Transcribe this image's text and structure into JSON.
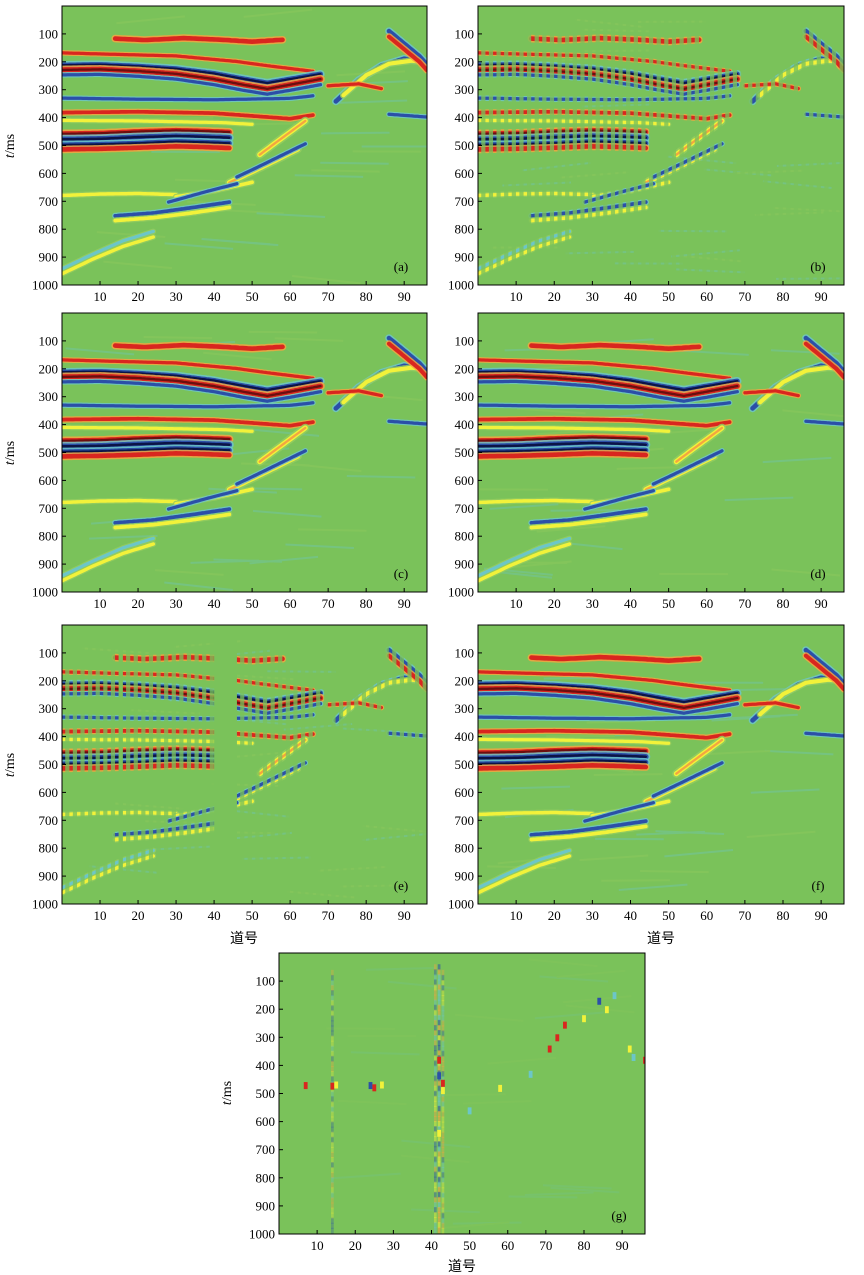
{
  "figure": {
    "colormap": {
      "background": "#7ac25a",
      "light_green": "#95cc5f",
      "yellow": "#f2f23a",
      "orange": "#f4a540",
      "red": "#d9261f",
      "dark_red": "#6b0f0f",
      "cyan": "#6cc6c8",
      "blue": "#2b4fa8",
      "dark_blue": "#0b1446"
    },
    "frame_color": "#000000"
  },
  "chart_data": [
    {
      "type": "heatmap",
      "label": "(a)",
      "variant": "original",
      "xlabel": "",
      "ylabel": "t/ms",
      "ylabel_italic": "t",
      "ylabel_unit": "/ms",
      "xlim": [
        0,
        96
      ],
      "ylim": [
        1000,
        0
      ],
      "y_inverted": true,
      "x_ticks": [
        "10",
        "20",
        "30",
        "40",
        "50",
        "60",
        "70",
        "80",
        "90"
      ],
      "y_ticks": [
        "100",
        "200",
        "300",
        "400",
        "500",
        "600",
        "700",
        "800",
        "900",
        "1000"
      ],
      "grid": false,
      "legend": "none",
      "events": [
        {
          "shape": "piecewise",
          "x": [
            14,
            22,
            32,
            42,
            50,
            58
          ],
          "t": [
            117,
            122,
            115,
            121,
            128,
            121
          ],
          "polarity": "red",
          "strength": 0.8
        },
        {
          "shape": "piecewise",
          "x": [
            0,
            16,
            30,
            46,
            54,
            60,
            66
          ],
          "t": [
            168,
            174,
            179,
            199,
            214,
            224,
            234
          ],
          "polarity": "red",
          "strength": 0.5
        },
        {
          "shape": "piecewise",
          "x": [
            0,
            10,
            20,
            30,
            40,
            48,
            54,
            60,
            68
          ],
          "t": [
            212,
            210,
            216,
            225,
            242,
            262,
            276,
            262,
            244
          ],
          "polarity": "blue",
          "strength": 0.9
        },
        {
          "shape": "piecewise",
          "x": [
            0,
            10,
            20,
            30,
            40,
            48,
            54,
            60,
            68
          ],
          "t": [
            229,
            227,
            233,
            243,
            262,
            283,
            297,
            282,
            262
          ],
          "polarity": "red",
          "strength": 0.95
        },
        {
          "shape": "piecewise",
          "x": [
            0,
            10,
            20,
            30,
            40,
            48,
            54,
            60,
            68
          ],
          "t": [
            247,
            245,
            252,
            262,
            282,
            303,
            316,
            302,
            282
          ],
          "polarity": "blue",
          "strength": 0.5
        },
        {
          "shape": "piecewise",
          "x": [
            0,
            20,
            40,
            60,
            66
          ],
          "t": [
            330,
            334,
            336,
            331,
            322
          ],
          "polarity": "blue",
          "strength": 0.5
        },
        {
          "shape": "piecewise",
          "x": [
            0,
            20,
            40,
            52,
            60,
            66
          ],
          "t": [
            382,
            379,
            384,
            396,
            404,
            391
          ],
          "polarity": "red",
          "strength": 0.6
        },
        {
          "shape": "piecewise",
          "x": [
            0,
            20,
            42,
            50
          ],
          "t": [
            410,
            412,
            418,
            424
          ],
          "polarity": "yellow",
          "strength": 0.5
        },
        {
          "shape": "piecewise",
          "x": [
            0,
            10,
            20,
            30,
            36,
            44
          ],
          "t": [
            458,
            456,
            450,
            446,
            448,
            452
          ],
          "polarity": "red",
          "strength": 0.9
        },
        {
          "shape": "piecewise",
          "x": [
            0,
            10,
            20,
            30,
            36,
            44
          ],
          "t": [
            478,
            476,
            470,
            466,
            468,
            472
          ],
          "polarity": "blue",
          "strength": 1.0
        },
        {
          "shape": "piecewise",
          "x": [
            0,
            10,
            20,
            30,
            36,
            44
          ],
          "t": [
            498,
            496,
            492,
            486,
            488,
            492
          ],
          "polarity": "blue",
          "strength": 0.9
        },
        {
          "shape": "piecewise",
          "x": [
            0,
            10,
            20,
            30,
            36,
            44
          ],
          "t": [
            514,
            512,
            508,
            503,
            505,
            509
          ],
          "polarity": "red",
          "strength": 0.8
        },
        {
          "shape": "piecewise",
          "x": [
            52,
            56,
            60,
            64
          ],
          "t": [
            533,
            492,
            452,
            412
          ],
          "polarity": "yellow",
          "strength": 0.9
        },
        {
          "shape": "piecewise",
          "x": [
            44,
            50,
            56,
            62
          ],
          "t": [
            633,
            594,
            554,
            513
          ],
          "polarity": "yellow",
          "strength": 0.9
        },
        {
          "shape": "piecewise",
          "x": [
            46,
            52,
            58,
            64
          ],
          "t": [
            613,
            574,
            534,
            494
          ],
          "polarity": "blue",
          "strength": 0.5
        },
        {
          "shape": "piecewise",
          "x": [
            0,
            6,
            10,
            20,
            30
          ],
          "t": [
            679,
            676,
            674,
            672,
            676
          ],
          "polarity": "yellow",
          "strength": 0.55
        },
        {
          "shape": "piecewise",
          "x": [
            30,
            40,
            50
          ],
          "t": [
            684,
            662,
            632
          ],
          "polarity": "yellow",
          "strength": 0.6
        },
        {
          "shape": "piecewise",
          "x": [
            28,
            38,
            46
          ],
          "t": [
            703,
            665,
            637
          ],
          "polarity": "blue",
          "strength": 0.5
        },
        {
          "shape": "piecewise",
          "x": [
            14,
            24,
            34,
            44
          ],
          "t": [
            752,
            742,
            723,
            703
          ],
          "polarity": "blue",
          "strength": 0.6
        },
        {
          "shape": "piecewise",
          "x": [
            14,
            24,
            34,
            44
          ],
          "t": [
            769,
            759,
            742,
            722
          ],
          "polarity": "yellow",
          "strength": 0.6
        },
        {
          "shape": "piecewise",
          "x": [
            0,
            8,
            16,
            24
          ],
          "t": [
            960,
            908,
            862,
            828
          ],
          "polarity": "yellow",
          "strength": 0.55
        },
        {
          "shape": "piecewise",
          "x": [
            0,
            8,
            16,
            24
          ],
          "t": [
            942,
            890,
            842,
            808
          ],
          "polarity": "cyan",
          "strength": 0.5
        },
        {
          "shape": "piecewise",
          "x": [
            72,
            78,
            84,
            90,
            96
          ],
          "t": [
            342,
            266,
            214,
            189,
            199
          ],
          "polarity": "blue",
          "strength": 0.8
        },
        {
          "shape": "piecewise",
          "x": [
            74,
            80,
            86,
            92,
            96
          ],
          "t": [
            320,
            248,
            207,
            196,
            202
          ],
          "polarity": "yellow",
          "strength": 0.7
        },
        {
          "shape": "piecewise",
          "x": [
            86,
            90,
            94,
            96
          ],
          "t": [
            90,
            135,
            180,
            210
          ],
          "polarity": "blue",
          "strength": 0.8
        },
        {
          "shape": "piecewise",
          "x": [
            86,
            90,
            94,
            96
          ],
          "t": [
            110,
            155,
            200,
            230
          ],
          "polarity": "red",
          "strength": 0.7
        },
        {
          "shape": "piecewise",
          "x": [
            86,
            96
          ],
          "t": [
            388,
            398
          ],
          "polarity": "blue",
          "strength": 0.5
        },
        {
          "shape": "piecewise",
          "x": [
            70,
            78,
            84
          ],
          "t": [
            286,
            279,
            296
          ],
          "polarity": "red",
          "strength": 0.5
        }
      ],
      "missing_traces": [],
      "trace_stripes": false,
      "residual": false
    },
    {
      "type": "heatmap",
      "label": "(b)",
      "variant": "decimated",
      "xlabel": "",
      "ylabel": "",
      "xlim": [
        0,
        96
      ],
      "ylim": [
        1000,
        0
      ],
      "y_inverted": true,
      "x_ticks": [
        "10",
        "20",
        "30",
        "40",
        "50",
        "60",
        "70",
        "80",
        "90"
      ],
      "y_ticks": [
        "100",
        "200",
        "300",
        "400",
        "500",
        "600",
        "700",
        "800",
        "900",
        "1000"
      ],
      "grid": false,
      "legend": "none",
      "events": "same as (a)",
      "missing_traces": [],
      "trace_stripes": true,
      "residual": false
    },
    {
      "type": "heatmap",
      "label": "(c)",
      "variant": "reconstructed",
      "xlabel": "",
      "ylabel": "t/ms",
      "ylabel_italic": "t",
      "ylabel_unit": "/ms",
      "xlim": [
        0,
        96
      ],
      "ylim": [
        1000,
        0
      ],
      "y_inverted": true,
      "x_ticks": [
        "10",
        "20",
        "30",
        "40",
        "50",
        "60",
        "70",
        "80",
        "90"
      ],
      "y_ticks": [
        "100",
        "200",
        "300",
        "400",
        "500",
        "600",
        "700",
        "800",
        "900",
        "1000"
      ],
      "grid": false,
      "legend": "none",
      "events": "same as (a)",
      "missing_traces": [],
      "trace_stripes": false,
      "residual": false
    },
    {
      "type": "heatmap",
      "label": "(d)",
      "variant": "reconstructed",
      "xlabel": "",
      "ylabel": "",
      "xlim": [
        0,
        96
      ],
      "ylim": [
        1000,
        0
      ],
      "y_inverted": true,
      "x_ticks": [
        "10",
        "20",
        "30",
        "40",
        "50",
        "60",
        "70",
        "80",
        "90"
      ],
      "y_ticks": [
        "100",
        "200",
        "300",
        "400",
        "500",
        "600",
        "700",
        "800",
        "900",
        "1000"
      ],
      "grid": false,
      "legend": "none",
      "events": "same as (a)",
      "missing_traces": [],
      "trace_stripes": false,
      "residual": false
    },
    {
      "type": "heatmap",
      "label": "(e)",
      "variant": "decimated_with_gap",
      "xlabel": "道号",
      "ylabel": "t/ms",
      "ylabel_italic": "t",
      "ylabel_unit": "/ms",
      "xlim": [
        0,
        96
      ],
      "ylim": [
        1000,
        0
      ],
      "y_inverted": true,
      "x_ticks": [
        "10",
        "20",
        "30",
        "40",
        "50",
        "60",
        "70",
        "80",
        "90"
      ],
      "y_ticks": [
        "100",
        "200",
        "300",
        "400",
        "500",
        "600",
        "700",
        "800",
        "900",
        "1000"
      ],
      "grid": false,
      "legend": "none",
      "events": "same as (a)",
      "missing_traces": [
        [
          15,
          16
        ],
        [
          40,
          46
        ]
      ],
      "trace_stripes": true,
      "residual": false
    },
    {
      "type": "heatmap",
      "label": "(f)",
      "variant": "reconstructed",
      "xlabel": "道号",
      "ylabel": "",
      "xlim": [
        0,
        96
      ],
      "ylim": [
        1000,
        0
      ],
      "y_inverted": true,
      "x_ticks": [
        "10",
        "20",
        "30",
        "40",
        "50",
        "60",
        "70",
        "80",
        "90"
      ],
      "y_ticks": [
        "100",
        "200",
        "300",
        "400",
        "500",
        "600",
        "700",
        "800",
        "900",
        "1000"
      ],
      "grid": false,
      "legend": "none",
      "events": "same as (a)",
      "missing_traces": [],
      "trace_stripes": false,
      "residual": false
    },
    {
      "type": "heatmap",
      "label": "(g)",
      "variant": "residual",
      "xlabel": "道号",
      "ylabel": "t/ms",
      "ylabel_italic": "t",
      "ylabel_unit": "/ms",
      "xlim": [
        0,
        96
      ],
      "ylim": [
        1000,
        0
      ],
      "y_inverted": true,
      "x_ticks": [
        "10",
        "20",
        "30",
        "40",
        "50",
        "60",
        "70",
        "80",
        "90"
      ],
      "y_ticks": [
        "100",
        "200",
        "300",
        "400",
        "500",
        "600",
        "700",
        "800",
        "900",
        "1000"
      ],
      "grid": false,
      "legend": "none",
      "residual_traces": [
        {
          "x": 14,
          "t_range": [
            60,
            980
          ],
          "strength": 0.3
        },
        {
          "x": 41,
          "t_range": [
            40,
            980
          ],
          "strength": 0.4
        },
        {
          "x": 42,
          "t_range": [
            40,
            980
          ],
          "strength": 0.55
        },
        {
          "x": 43,
          "t_range": [
            60,
            980
          ],
          "strength": 0.35
        }
      ],
      "residual_spots": [
        {
          "x": 7,
          "t": 470,
          "polarity": "red"
        },
        {
          "x": 14,
          "t": 472,
          "polarity": "red"
        },
        {
          "x": 15,
          "t": 468,
          "polarity": "yellow"
        },
        {
          "x": 24,
          "t": 470,
          "polarity": "blue"
        },
        {
          "x": 25,
          "t": 478,
          "polarity": "red"
        },
        {
          "x": 27,
          "t": 468,
          "polarity": "yellow"
        },
        {
          "x": 42,
          "t": 380,
          "polarity": "red"
        },
        {
          "x": 42,
          "t": 435,
          "polarity": "blue"
        },
        {
          "x": 43,
          "t": 462,
          "polarity": "red"
        },
        {
          "x": 43,
          "t": 488,
          "polarity": "yellow"
        },
        {
          "x": 42,
          "t": 640,
          "polarity": "yellow"
        },
        {
          "x": 71,
          "t": 340,
          "polarity": "red"
        },
        {
          "x": 73,
          "t": 300,
          "polarity": "red"
        },
        {
          "x": 75,
          "t": 255,
          "polarity": "red"
        },
        {
          "x": 80,
          "t": 232,
          "polarity": "yellow"
        },
        {
          "x": 84,
          "t": 170,
          "polarity": "blue"
        },
        {
          "x": 86,
          "t": 200,
          "polarity": "yellow"
        },
        {
          "x": 88,
          "t": 150,
          "polarity": "cyan"
        },
        {
          "x": 92,
          "t": 340,
          "polarity": "yellow"
        },
        {
          "x": 93,
          "t": 370,
          "polarity": "cyan"
        },
        {
          "x": 96,
          "t": 380,
          "polarity": "red"
        },
        {
          "x": 50,
          "t": 560,
          "polarity": "cyan"
        },
        {
          "x": 58,
          "t": 480,
          "polarity": "yellow"
        },
        {
          "x": 66,
          "t": 430,
          "polarity": "cyan"
        }
      ],
      "missing_traces": [],
      "trace_stripes": false,
      "residual": true
    }
  ]
}
